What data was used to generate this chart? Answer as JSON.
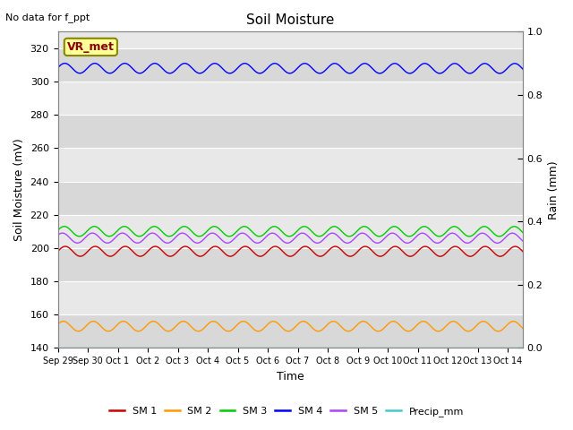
{
  "title": "Soil Moisture",
  "top_left_text": "No data for f_ppt",
  "annotation_text": "VR_met",
  "xlabel": "Time",
  "ylabel_left": "Soil Moisture (mV)",
  "ylabel_right": "Rain (mm)",
  "ylim_left": [
    140,
    330
  ],
  "ylim_right": [
    0.0,
    1.0
  ],
  "yticks_left": [
    140,
    160,
    180,
    200,
    220,
    240,
    260,
    280,
    300,
    320
  ],
  "yticks_right": [
    0.0,
    0.2,
    0.4,
    0.6,
    0.8,
    1.0
  ],
  "n_days": 15.5,
  "n_points": 744,
  "series": {
    "SM1": {
      "color": "#cc0000",
      "base": 198,
      "amplitude": 3,
      "period": 1.0,
      "phase": 0.0,
      "trend": -0.003
    },
    "SM2": {
      "color": "#ff9900",
      "base": 153,
      "amplitude": 3,
      "period": 1.0,
      "phase": 0.4,
      "trend": -0.002
    },
    "SM3": {
      "color": "#00cc00",
      "base": 210,
      "amplitude": 3,
      "period": 1.0,
      "phase": 0.2,
      "trend": -0.003
    },
    "SM4": {
      "color": "#0000ff",
      "base": 308,
      "amplitude": 3,
      "period": 1.0,
      "phase": 0.1,
      "trend": -0.006
    },
    "SM5": {
      "color": "#aa44ff",
      "base": 206,
      "amplitude": 3,
      "period": 1.0,
      "phase": 0.6,
      "trend": -0.003
    },
    "Precip_mm": {
      "color": "#44cccc",
      "base": 140,
      "amplitude": 0,
      "period": 1.0,
      "phase": 0.0,
      "trend": 0.0
    }
  },
  "xtick_labels": [
    "Sep 29",
    "Sep 30",
    "Oct 1",
    "Oct 2",
    "Oct 3",
    "Oct 4",
    "Oct 5",
    "Oct 6",
    "Oct 7",
    "Oct 8",
    "Oct 9",
    "Oct 10",
    "Oct 11",
    "Oct 12",
    "Oct 13",
    "Oct 14"
  ],
  "band_colors": [
    "#d8d8d8",
    "#e8e8e8"
  ],
  "grid_color": "#ffffff",
  "fig_bg": "#ffffff",
  "legend_items": [
    "SM 1",
    "SM 2",
    "SM 3",
    "SM 4",
    "SM 5",
    "Precip_mm"
  ],
  "legend_colors": [
    "#cc0000",
    "#ff9900",
    "#00cc00",
    "#0000ff",
    "#aa44ff",
    "#44cccc"
  ]
}
